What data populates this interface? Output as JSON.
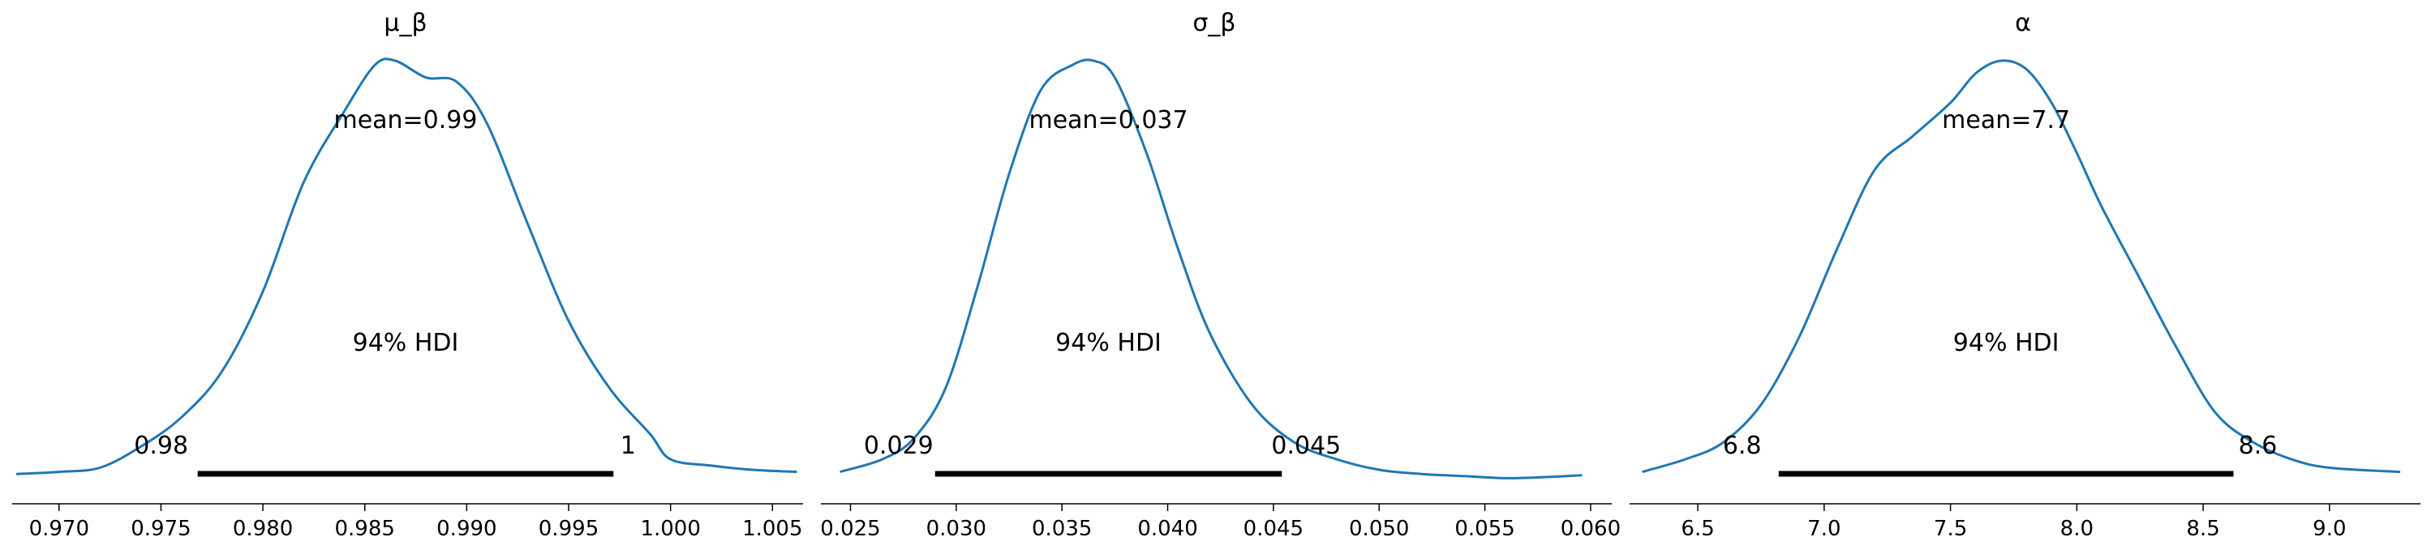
{
  "chart_data": [
    {
      "type": "line",
      "title": "μ_β",
      "color": "#1f77b4",
      "xlim": [
        0.9677,
        1.0065
      ],
      "x_ticks": [
        0.97,
        0.975,
        0.98,
        0.985,
        0.99,
        0.995,
        1.0,
        1.005
      ],
      "x_tick_labels": [
        "0.970",
        "0.975",
        "0.980",
        "0.985",
        "0.990",
        "0.995",
        "1.000",
        "1.005"
      ],
      "density_curve": {
        "x": [
          0.9679,
          0.97,
          0.972,
          0.974,
          0.976,
          0.978,
          0.98,
          0.982,
          0.984,
          0.9855,
          0.9865,
          0.988,
          0.9895,
          0.991,
          0.993,
          0.995,
          0.997,
          0.999,
          1.0,
          1.002,
          1.004,
          1.0062
        ],
        "y": [
          0.015,
          0.02,
          0.03,
          0.08,
          0.15,
          0.26,
          0.45,
          0.71,
          0.88,
          0.99,
          1.0,
          0.96,
          0.95,
          0.85,
          0.61,
          0.38,
          0.22,
          0.11,
          0.05,
          0.035,
          0.025,
          0.02
        ]
      },
      "mean_label": "mean=0.99",
      "hdi_label": "94% HDI",
      "hdi": [
        0.9768,
        0.9972
      ],
      "hdi_low_label": "0.98",
      "hdi_high_label": "1"
    },
    {
      "type": "line",
      "title": "σ_β",
      "color": "#1f77b4",
      "xlim": [
        0.0236,
        0.061
      ],
      "x_ticks": [
        0.025,
        0.03,
        0.035,
        0.04,
        0.045,
        0.05,
        0.055,
        0.06
      ],
      "x_tick_labels": [
        "0.025",
        "0.030",
        "0.035",
        "0.040",
        "0.045",
        "0.050",
        "0.055",
        "0.060"
      ],
      "density_curve": {
        "x": [
          0.0245,
          0.0265,
          0.028,
          0.0295,
          0.031,
          0.0325,
          0.034,
          0.0355,
          0.0365,
          0.0375,
          0.039,
          0.0405,
          0.042,
          0.044,
          0.046,
          0.048,
          0.05,
          0.052,
          0.054,
          0.056,
          0.058,
          0.0596
        ],
        "y": [
          0.02,
          0.05,
          0.1,
          0.22,
          0.46,
          0.73,
          0.93,
          0.99,
          1.0,
          0.96,
          0.78,
          0.55,
          0.35,
          0.18,
          0.09,
          0.05,
          0.025,
          0.015,
          0.01,
          0.005,
          0.008,
          0.012
        ]
      },
      "mean_label": "mean=0.037",
      "hdi_label": "94% HDI",
      "hdi": [
        0.029,
        0.0454
      ],
      "hdi_low_label": "0.029",
      "hdi_high_label": "0.045"
    },
    {
      "type": "line",
      "title": "α",
      "color": "#1f77b4",
      "xlim": [
        6.23,
        9.36
      ],
      "x_ticks": [
        6.5,
        7.0,
        7.5,
        8.0,
        8.5,
        9.0
      ],
      "x_tick_labels": [
        "6.5",
        "7.0",
        "7.5",
        "8.0",
        "8.5",
        "9.0"
      ],
      "density_curve": {
        "x": [
          6.28,
          6.45,
          6.6,
          6.75,
          6.9,
          7.05,
          7.2,
          7.35,
          7.5,
          7.6,
          7.7,
          7.8,
          7.9,
          8.0,
          8.1,
          8.25,
          8.4,
          8.55,
          8.7,
          8.85,
          9.0,
          9.28
        ],
        "y": [
          0.02,
          0.05,
          0.09,
          0.18,
          0.34,
          0.55,
          0.74,
          0.82,
          0.9,
          0.97,
          1.0,
          0.98,
          0.9,
          0.78,
          0.65,
          0.48,
          0.31,
          0.16,
          0.09,
          0.05,
          0.03,
          0.02
        ]
      },
      "mean_label": "mean=7.7",
      "hdi_label": "94% HDI",
      "hdi": [
        6.82,
        8.62
      ],
      "hdi_low_label": "6.8",
      "hdi_high_label": "8.6"
    }
  ]
}
